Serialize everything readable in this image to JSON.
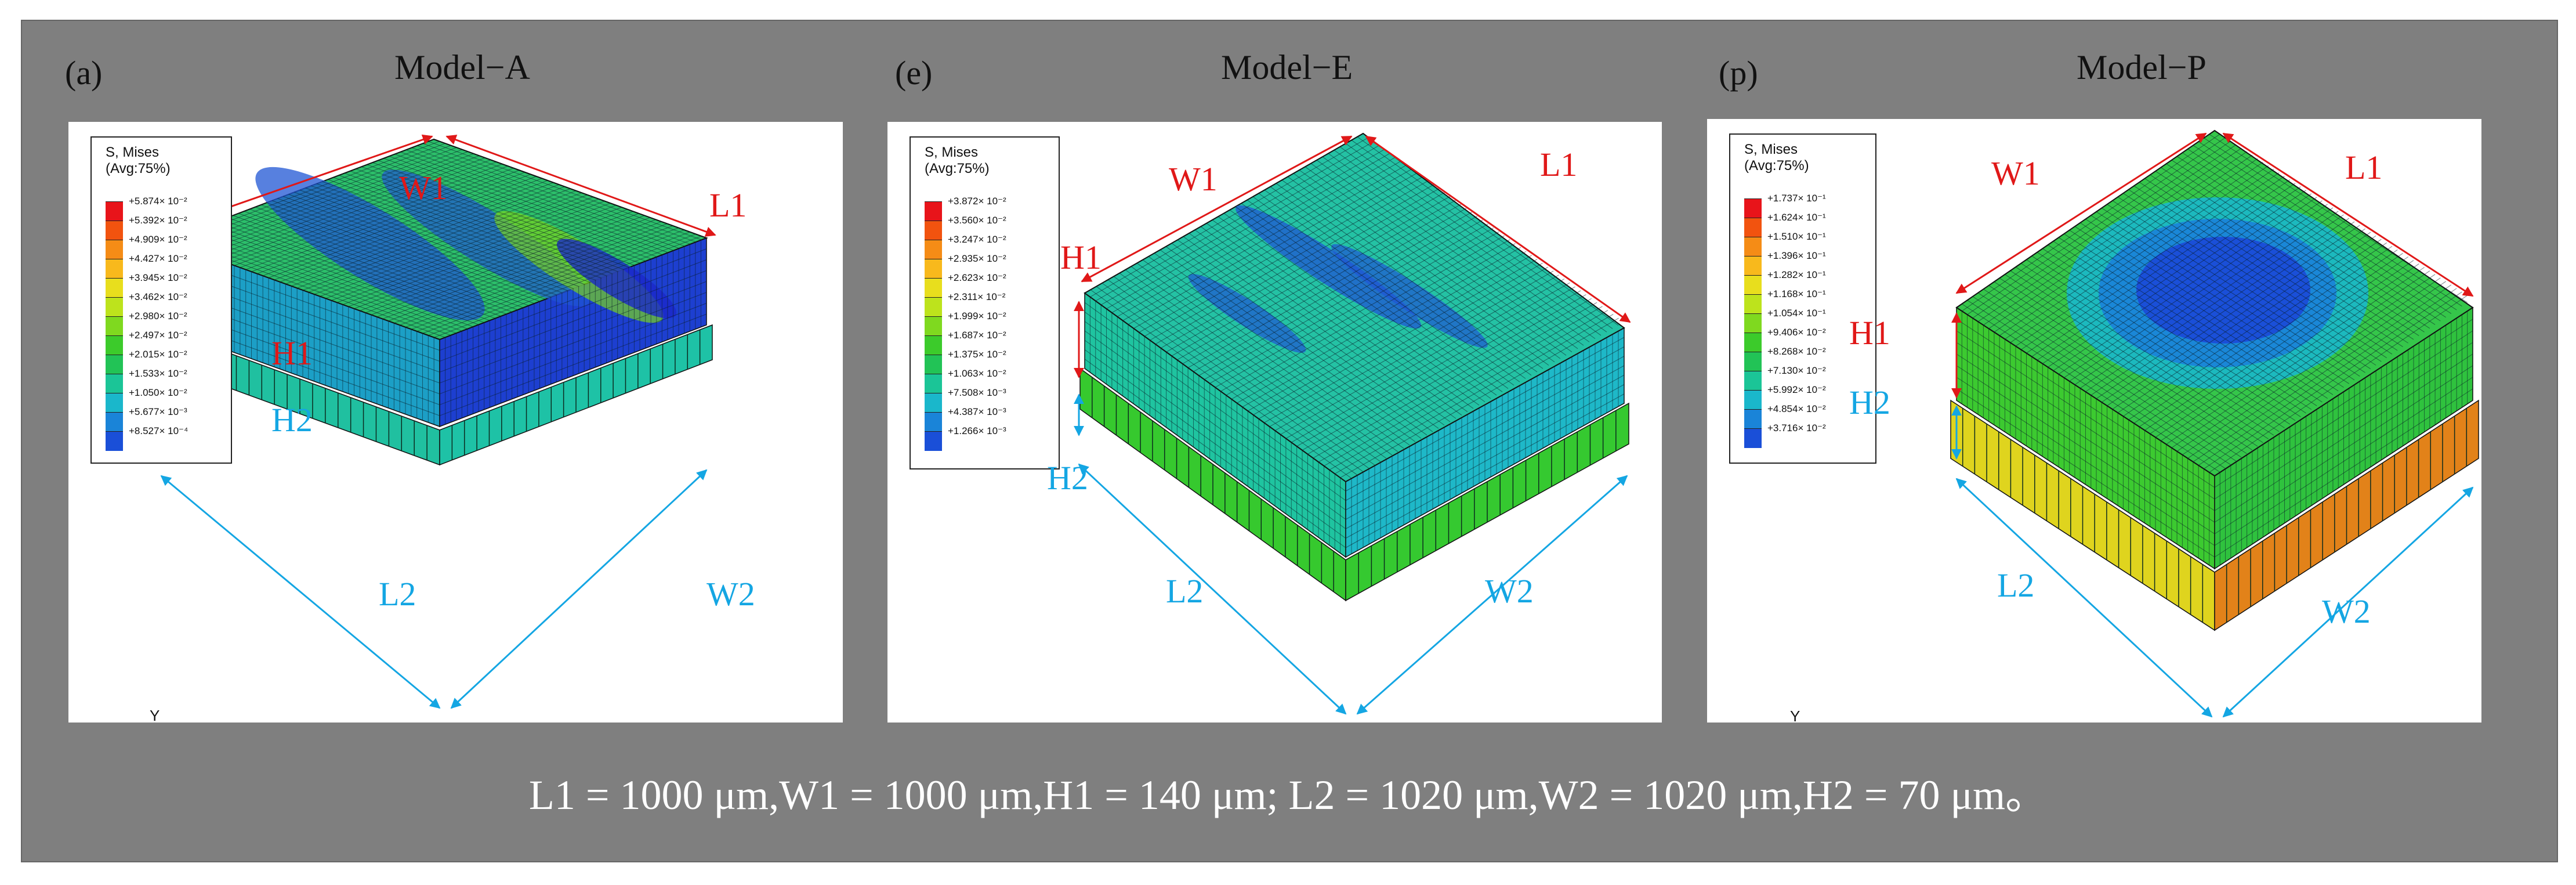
{
  "caption": "L1 = 1000 μm,W1 = 1000 μm,H1 = 140 μm; L2 = 1020 μm,W2 = 1020 μm,H2 = 70 μm。",
  "colors": {
    "frame": "#7f7f7f",
    "dim_red": "#e01818",
    "dim_blue": "#14a6e3",
    "contour": [
      "#e8141a",
      "#f2530f",
      "#f58c16",
      "#f8b91c",
      "#e8de1d",
      "#bde31c",
      "#7fd91f",
      "#3ccb2b",
      "#22c356",
      "#1bc597",
      "#1ab7cb",
      "#1a84d8",
      "#1a4fd8",
      "#1b28c9"
    ]
  },
  "panels": [
    {
      "letter": "(a)",
      "title": "Model−A",
      "legend_title": "S, Mises",
      "legend_subtitle": "(Avg:75%)",
      "legend_values": [
        "+5.874× 10⁻²",
        "+5.392× 10⁻²",
        "+4.909× 10⁻²",
        "+4.427× 10⁻²",
        "+3.945× 10⁻²",
        "+3.462× 10⁻²",
        "+2.980× 10⁻²",
        "+2.497× 10⁻²",
        "+2.015× 10⁻²",
        "+1.533× 10⁻²",
        "+1.050× 10⁻²",
        "+5.677× 10⁻³",
        "+8.527× 10⁻⁴"
      ],
      "labels": {
        "w1": "W1",
        "l1": "L1",
        "h1": "H1",
        "h2": "H2",
        "l2": "L2",
        "w2": "W2"
      },
      "triad": "Y"
    },
    {
      "letter": "(e)",
      "title": "Model−E",
      "legend_title": "S, Mises",
      "legend_subtitle": "(Avg:75%)",
      "legend_values": [
        "+3.872× 10⁻²",
        "+3.560× 10⁻²",
        "+3.247× 10⁻²",
        "+2.935× 10⁻²",
        "+2.623× 10⁻²",
        "+2.311× 10⁻²",
        "+1.999× 10⁻²",
        "+1.687× 10⁻²",
        "+1.375× 10⁻²",
        "+1.063× 10⁻²",
        "+7.508× 10⁻³",
        "+4.387× 10⁻³",
        "+1.266× 10⁻³"
      ],
      "labels": {
        "w1": "W1",
        "l1": "L1",
        "h1": "H1",
        "h2": "H2",
        "l2": "L2",
        "w2": "W2"
      }
    },
    {
      "letter": "(p)",
      "title": "Model−P",
      "legend_title": "S, Mises",
      "legend_subtitle": "(Avg:75%)",
      "legend_values": [
        "+1.737× 10⁻¹",
        "+1.624× 10⁻¹",
        "+1.510× 10⁻¹",
        "+1.396× 10⁻¹",
        "+1.282× 10⁻¹",
        "+1.168× 10⁻¹",
        "+1.054× 10⁻¹",
        "+9.406× 10⁻²",
        "+8.268× 10⁻²",
        "+7.130× 10⁻²",
        "+5.992× 10⁻²",
        "+4.854× 10⁻²",
        "+3.716× 10⁻²"
      ],
      "labels": {
        "w1": "W1",
        "l1": "L1",
        "h1": "H1",
        "h2": "H2",
        "l2": "L2",
        "w2": "W2"
      },
      "triad": "Y"
    }
  ]
}
